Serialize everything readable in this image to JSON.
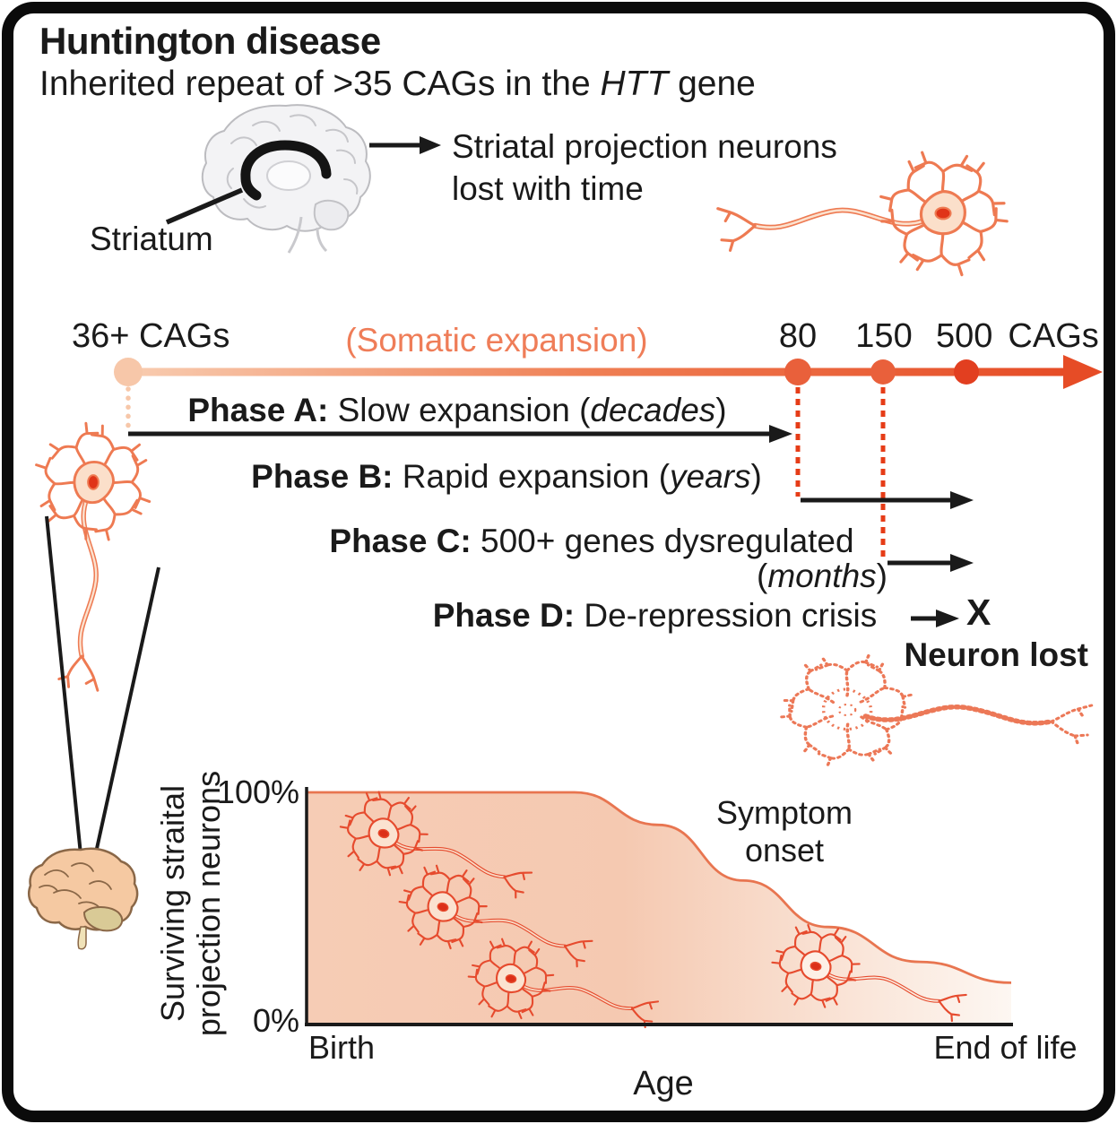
{
  "header": {
    "title": "Huntington disease",
    "subtitle_pre": "Inherited repeat of >35 CAGs in the ",
    "subtitle_em": "HTT",
    "subtitle_post": " gene"
  },
  "brain_callout": {
    "region_label": "Striatum",
    "note_line1": "Striatal projection neurons",
    "note_line2": "lost with time"
  },
  "timeline": {
    "start_label": "36+ CAGs",
    "somatic_label": "(Somatic expansion)",
    "tick_80": "80",
    "tick_150": "150",
    "tick_500": "500",
    "unit_label": "CAGs"
  },
  "phases": {
    "a": {
      "label": "Phase A:",
      "text": " Slow expansion (",
      "em": "decades",
      "close": ")"
    },
    "b": {
      "label": "Phase B:",
      "text": " Rapid expansion (",
      "em": "years",
      "close": ")"
    },
    "c": {
      "label": "Phase C:",
      "text": " 500+ genes dysregulated",
      "line2_open": "(",
      "line2_em": "months",
      "line2_close": ")"
    },
    "d": {
      "label": "Phase D:",
      "text": " De-repression crisis",
      "cross": "X",
      "result": "Neuron lost"
    }
  },
  "chart_data": {
    "type": "area",
    "title": "",
    "xlabel": "Age",
    "ylabel_line1": "Surviving straital",
    "ylabel_line2": "projection neurons",
    "x_tick_labels": [
      "Birth",
      "End of life"
    ],
    "y_tick_labels": [
      "100%",
      "0%"
    ],
    "ylim": [
      0,
      100
    ],
    "grid": false,
    "legend": "none",
    "annotation": {
      "line1": "Symptom",
      "line2": "onset"
    },
    "series": [
      {
        "name": "Surviving striatal projection neurons (%)",
        "x_fraction_of_lifespan": [
          0,
          0.38,
          0.5,
          0.62,
          0.74,
          0.87,
          1.0
        ],
        "values": [
          100,
          100,
          86,
          62,
          42,
          27,
          18
        ]
      }
    ]
  },
  "icons": {
    "brain_top": "brain-sagittal-icon",
    "brain_bottom": "brain-lateral-icon",
    "neuron": "neuron-icon",
    "degraded_neuron": "degraded-neuron-icon"
  },
  "colors": {
    "accent_salmon": "#ef7d58",
    "timeline_gradient_start": "#f8ccb0",
    "timeline_gradient_end": "#e64c26",
    "timeline_dot_start": "#f7c7a9",
    "timeline_dot_mid": "#e9603b",
    "timeline_dot_500": "#e23f20",
    "dotted_line_red": "#e63c17",
    "neuron_stroke": "#ee7a52",
    "neuron_fill": "#fbdfca",
    "neuron_nucleus": "#e03418",
    "chart_fill_left": "#f6ccb5",
    "chart_fill_right": "#fdf7f2",
    "text_black": "#1a1a1a"
  }
}
